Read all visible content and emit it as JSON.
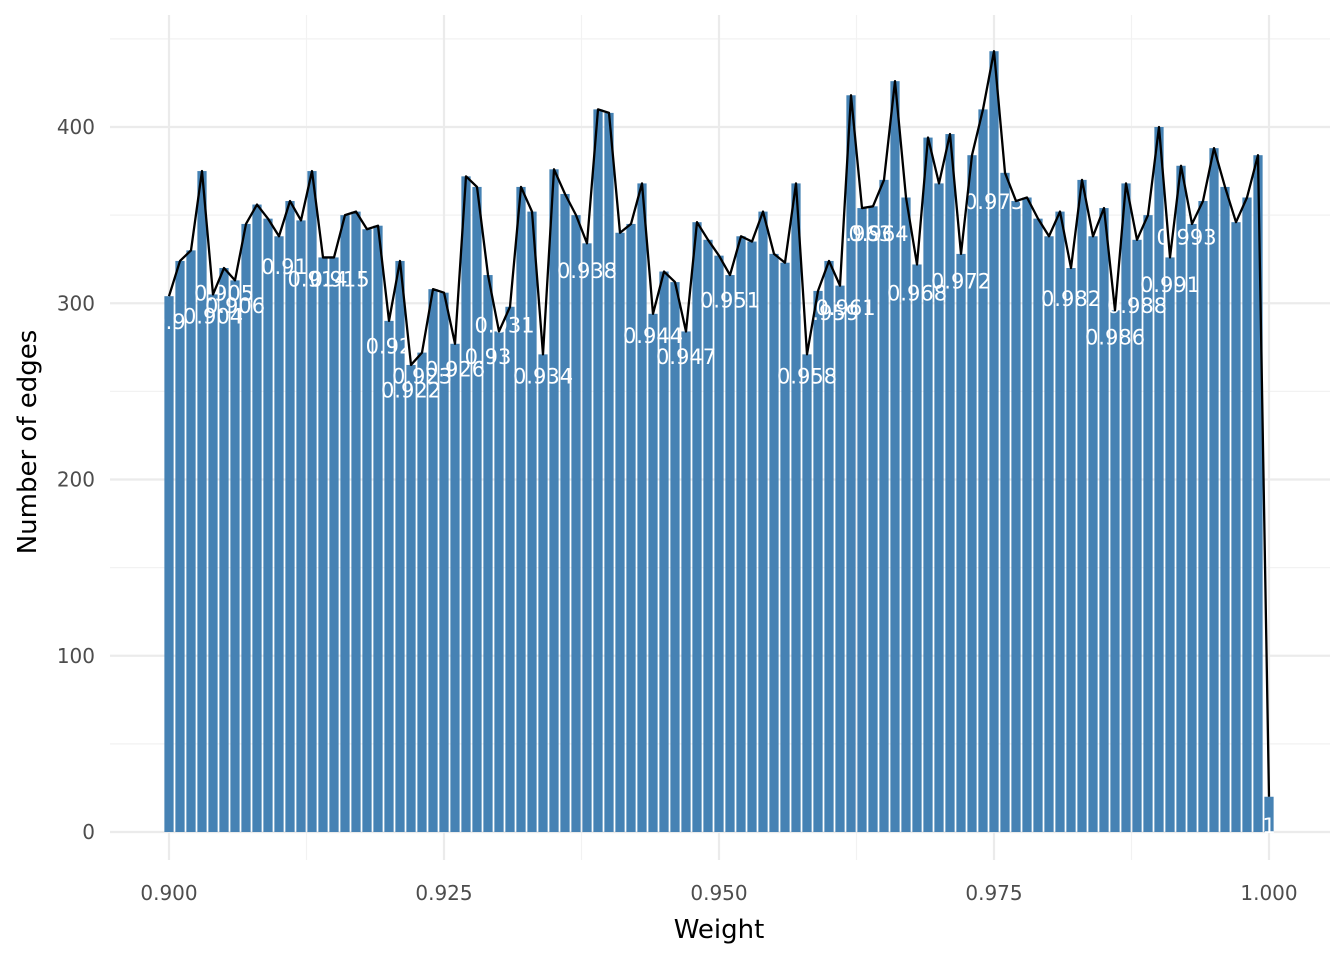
{
  "chart_data": {
    "type": "bar",
    "xlabel": "Weight",
    "ylabel": "Number of edges",
    "xlim": [
      0.9,
      1.0
    ],
    "ylim": [
      0,
      450
    ],
    "x_ticks": [
      "0.900",
      "0.925",
      "0.950",
      "0.975",
      "1.000"
    ],
    "x_tick_values": [
      0.9,
      0.925,
      0.95,
      0.975,
      1.0
    ],
    "y_ticks": [
      "0",
      "100",
      "200",
      "300",
      "400"
    ],
    "y_tick_values": [
      0,
      100,
      200,
      300,
      400
    ],
    "grid": true,
    "legend": "none",
    "bar_color": "#4682b4",
    "line_color": "#000000",
    "label_color": "#ffffff",
    "x": [
      0.9,
      0.901,
      0.902,
      0.903,
      0.904,
      0.905,
      0.906,
      0.907,
      0.908,
      0.909,
      0.91,
      0.911,
      0.912,
      0.913,
      0.914,
      0.915,
      0.916,
      0.917,
      0.918,
      0.919,
      0.92,
      0.921,
      0.922,
      0.923,
      0.924,
      0.925,
      0.926,
      0.927,
      0.928,
      0.929,
      0.93,
      0.931,
      0.932,
      0.933,
      0.934,
      0.935,
      0.936,
      0.937,
      0.938,
      0.939,
      0.94,
      0.941,
      0.942,
      0.943,
      0.944,
      0.945,
      0.946,
      0.947,
      0.948,
      0.949,
      0.95,
      0.951,
      0.952,
      0.953,
      0.954,
      0.955,
      0.956,
      0.957,
      0.958,
      0.959,
      0.96,
      0.961,
      0.962,
      0.963,
      0.964,
      0.965,
      0.966,
      0.967,
      0.968,
      0.969,
      0.97,
      0.971,
      0.972,
      0.973,
      0.974,
      0.975,
      0.976,
      0.977,
      0.978,
      0.979,
      0.98,
      0.981,
      0.982,
      0.983,
      0.984,
      0.985,
      0.986,
      0.987,
      0.988,
      0.989,
      0.99,
      0.991,
      0.992,
      0.993,
      0.994,
      0.995,
      0.996,
      0.997,
      0.998,
      0.999,
      1.0
    ],
    "values": [
      304,
      324,
      330,
      375,
      305,
      320,
      313,
      345,
      356,
      348,
      338,
      358,
      347,
      375,
      326,
      326,
      350,
      352,
      342,
      344,
      290,
      324,
      265,
      272,
      308,
      306,
      277,
      372,
      366,
      316,
      284,
      298,
      366,
      352,
      271,
      376,
      362,
      350,
      334,
      410,
      408,
      340,
      345,
      368,
      294,
      318,
      312,
      284,
      346,
      336,
      327,
      316,
      338,
      335,
      352,
      328,
      323,
      368,
      271,
      307,
      324,
      310,
      418,
      354,
      355,
      370,
      426,
      360,
      322,
      394,
      368,
      396,
      328,
      384,
      410,
      443,
      374,
      358,
      360,
      348,
      338,
      352,
      320,
      370,
      338,
      354,
      296,
      368,
      336,
      350,
      400,
      326,
      378,
      345,
      358,
      388,
      366,
      346,
      360,
      384,
      20
    ],
    "labels": [
      {
        "text": "0.9",
        "x": 0.9,
        "y": 290
      },
      {
        "text": "0.904",
        "x": 0.904,
        "y": 293
      },
      {
        "text": "0.905",
        "x": 0.905,
        "y": 306
      },
      {
        "text": "0.906",
        "x": 0.906,
        "y": 299
      },
      {
        "text": "0.91",
        "x": 0.9105,
        "y": 321
      },
      {
        "text": "0.914",
        "x": 0.9135,
        "y": 314
      },
      {
        "text": "0.915",
        "x": 0.9155,
        "y": 314
      },
      {
        "text": "0.92",
        "x": 0.92,
        "y": 276
      },
      {
        "text": "0.922",
        "x": 0.922,
        "y": 251
      },
      {
        "text": "0.923",
        "x": 0.923,
        "y": 259
      },
      {
        "text": "0.926",
        "x": 0.926,
        "y": 263
      },
      {
        "text": "0.93",
        "x": 0.929,
        "y": 270
      },
      {
        "text": "0.931",
        "x": 0.9305,
        "y": 288
      },
      {
        "text": "0.934",
        "x": 0.934,
        "y": 259
      },
      {
        "text": "0.938",
        "x": 0.938,
        "y": 319
      },
      {
        "text": "0.944",
        "x": 0.944,
        "y": 282
      },
      {
        "text": "0.947",
        "x": 0.947,
        "y": 270
      },
      {
        "text": "0.951",
        "x": 0.951,
        "y": 302
      },
      {
        "text": "0.958",
        "x": 0.958,
        "y": 259
      },
      {
        "text": "0.959",
        "x": 0.96,
        "y": 295
      },
      {
        "text": "0.961",
        "x": 0.9615,
        "y": 298
      },
      {
        "text": "0.963",
        "x": 0.963,
        "y": 340
      },
      {
        "text": "0.964",
        "x": 0.9645,
        "y": 340
      },
      {
        "text": "0.968",
        "x": 0.968,
        "y": 306
      },
      {
        "text": "0.972",
        "x": 0.972,
        "y": 313
      },
      {
        "text": "0.975",
        "x": 0.975,
        "y": 358
      },
      {
        "text": "0.982",
        "x": 0.982,
        "y": 303
      },
      {
        "text": "0.986",
        "x": 0.986,
        "y": 281
      },
      {
        "text": "0.988",
        "x": 0.988,
        "y": 299
      },
      {
        "text": "0.991",
        "x": 0.991,
        "y": 311
      },
      {
        "text": "0.993",
        "x": 0.9925,
        "y": 338
      },
      {
        "text": "1",
        "x": 1.0,
        "y": 4
      }
    ]
  }
}
